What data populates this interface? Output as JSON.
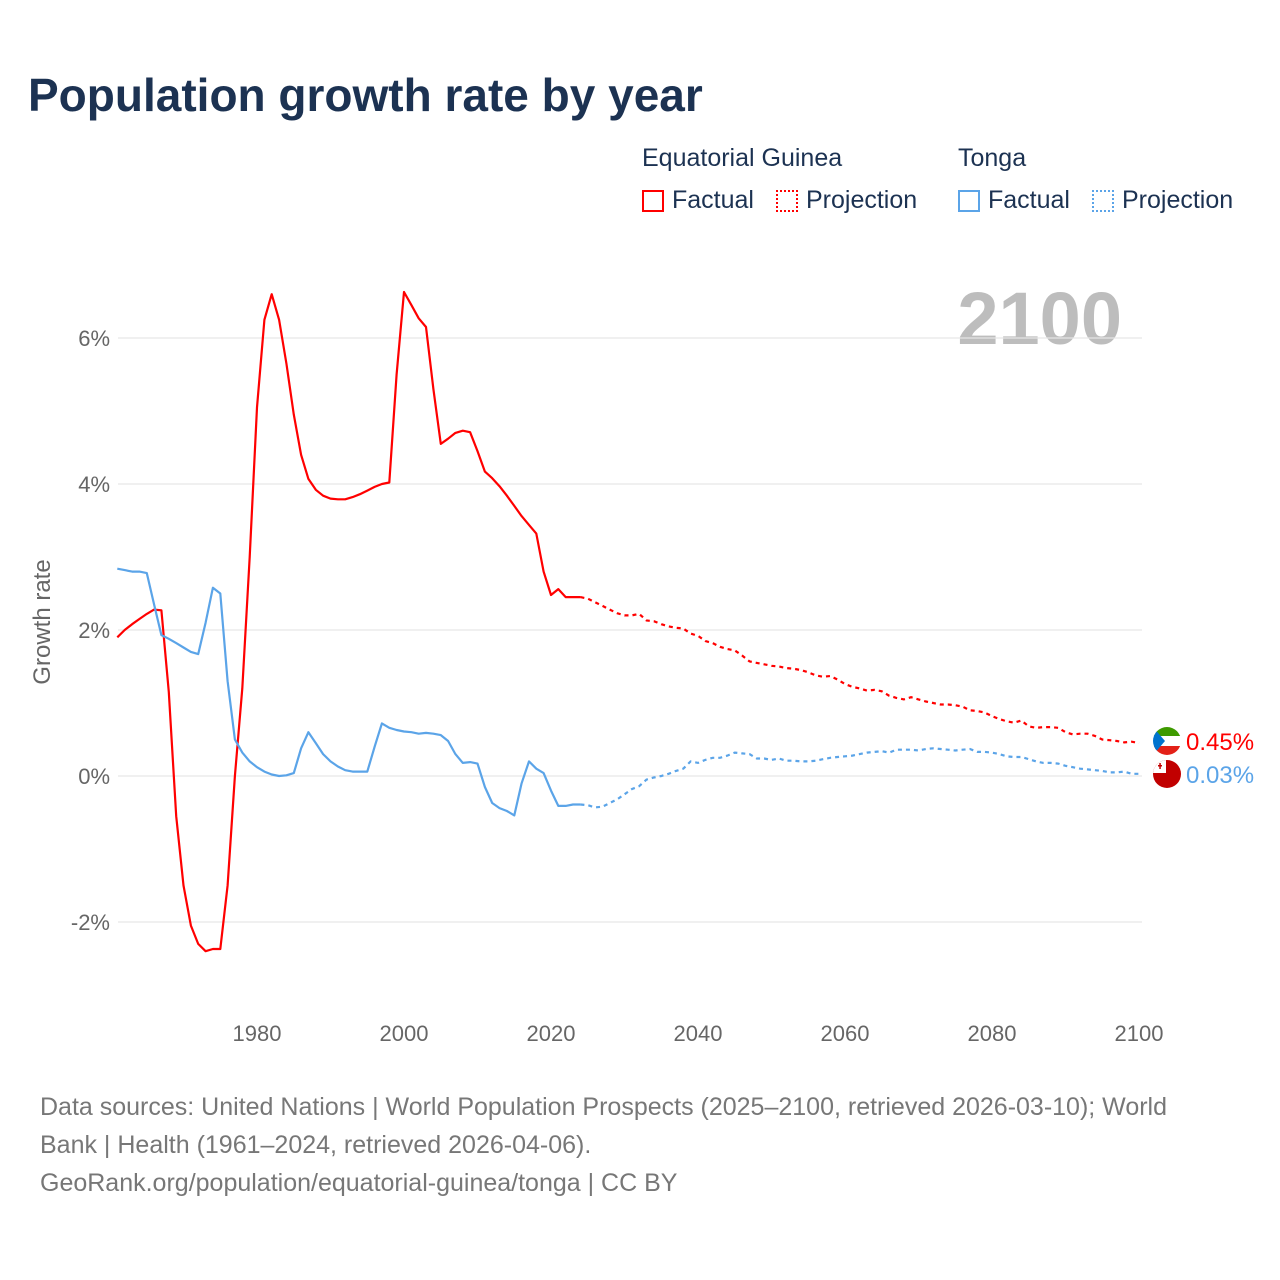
{
  "title": "Population growth rate by year",
  "year_label": "2100",
  "legend": {
    "groups": [
      {
        "name": "Equatorial Guinea",
        "factual": "Factual",
        "projection": "Projection",
        "color": "#ff0000"
      },
      {
        "name": "Tonga",
        "factual": "Factual",
        "projection": "Projection",
        "color": "#5ba4e8"
      }
    ]
  },
  "footer": {
    "line1": "Data sources: United Nations | World Population Prospects (2025–2100, retrieved 2026-03-10); World",
    "line2": "Bank | Health (1961–2024, retrieved 2026-04-06).",
    "line3": "GeoRank.org/population/equatorial-guinea/tonga | CC BY"
  },
  "chart_data": {
    "type": "line",
    "title": "Population growth rate by year",
    "xlabel": "",
    "ylabel": "Growth rate",
    "xlim": [
      1961,
      2100
    ],
    "ylim": [
      -3,
      7
    ],
    "x_ticks": [
      1980,
      2000,
      2020,
      2040,
      2060,
      2080,
      2100
    ],
    "x_tick_labels": [
      "1980",
      "2000",
      "2020",
      "2040",
      "2060",
      "2080",
      "2100"
    ],
    "y_ticks": [
      -2,
      0,
      2,
      4,
      6
    ],
    "y_tick_labels": [
      "-2%",
      "0%",
      "2%",
      "4%",
      "6%"
    ],
    "grid": true,
    "legend_position": "top-right",
    "series": [
      {
        "name": "Equatorial Guinea",
        "color": "#ff0000",
        "end_label": "0.45%",
        "factual_start": 1961,
        "factual": [
          1.9,
          2.0,
          2.08,
          2.15,
          2.22,
          2.28,
          2.27,
          1.15,
          -0.55,
          -1.5,
          -2.05,
          -2.3,
          -2.4,
          -2.37,
          -2.37,
          -1.5,
          0.0,
          1.2,
          3.0,
          5.05,
          6.25,
          6.6,
          6.25,
          5.65,
          4.95,
          4.4,
          4.07,
          3.92,
          3.84,
          3.8,
          3.79,
          3.79,
          3.82,
          3.86,
          3.91,
          3.96,
          4.0,
          4.02,
          5.5,
          6.63,
          6.45,
          6.27,
          6.15,
          5.3,
          4.55,
          4.62,
          4.7,
          4.73,
          4.71,
          4.45,
          4.17,
          4.08,
          3.97,
          3.84,
          3.7,
          3.56,
          3.44,
          3.32,
          2.8,
          2.48,
          2.56,
          2.45,
          2.45,
          2.45
        ],
        "projection_start": 2024,
        "projection": [
          2.45,
          2.43,
          2.38,
          2.33,
          2.28,
          2.23,
          2.2,
          2.2,
          2.22,
          2.13,
          2.12,
          2.08,
          2.05,
          2.03,
          2.02,
          1.95,
          1.92,
          1.85,
          1.82,
          1.77,
          1.74,
          1.72,
          1.65,
          1.57,
          1.55,
          1.53,
          1.51,
          1.5,
          1.48,
          1.47,
          1.45,
          1.42,
          1.38,
          1.36,
          1.37,
          1.32,
          1.26,
          1.22,
          1.2,
          1.17,
          1.18,
          1.16,
          1.1,
          1.07,
          1.05,
          1.08,
          1.05,
          1.02,
          1.0,
          0.98,
          0.98,
          0.97,
          0.95,
          0.9,
          0.89,
          0.87,
          0.82,
          0.78,
          0.75,
          0.73,
          0.76,
          0.68,
          0.66,
          0.67,
          0.67,
          0.66,
          0.6,
          0.57,
          0.58,
          0.58,
          0.55,
          0.5,
          0.49,
          0.48,
          0.46,
          0.47,
          0.45
        ]
      },
      {
        "name": "Tonga",
        "color": "#5ba4e8",
        "end_label": "0.03%",
        "factual_start": 1961,
        "factual": [
          2.84,
          2.82,
          2.8,
          2.8,
          2.78,
          2.35,
          1.93,
          1.88,
          1.82,
          1.76,
          1.7,
          1.67,
          2.1,
          2.58,
          2.5,
          1.3,
          0.5,
          0.32,
          0.2,
          0.12,
          0.06,
          0.02,
          0.0,
          0.01,
          0.04,
          0.38,
          0.6,
          0.45,
          0.3,
          0.2,
          0.13,
          0.08,
          0.06,
          0.06,
          0.06,
          0.4,
          0.72,
          0.66,
          0.63,
          0.61,
          0.6,
          0.58,
          0.59,
          0.58,
          0.56,
          0.48,
          0.3,
          0.18,
          0.19,
          0.17,
          -0.15,
          -0.37,
          -0.44,
          -0.48,
          -0.54,
          -0.1,
          0.2,
          0.1,
          0.04,
          -0.2,
          -0.41,
          -0.41,
          -0.39,
          -0.39
        ],
        "projection_start": 2024,
        "projection": [
          -0.39,
          -0.4,
          -0.43,
          -0.42,
          -0.37,
          -0.32,
          -0.25,
          -0.18,
          -0.14,
          -0.05,
          -0.02,
          0.0,
          0.03,
          0.07,
          0.1,
          0.2,
          0.18,
          0.22,
          0.25,
          0.25,
          0.28,
          0.32,
          0.31,
          0.3,
          0.24,
          0.24,
          0.22,
          0.24,
          0.21,
          0.21,
          0.2,
          0.2,
          0.21,
          0.23,
          0.25,
          0.26,
          0.27,
          0.28,
          0.3,
          0.32,
          0.33,
          0.34,
          0.32,
          0.36,
          0.36,
          0.36,
          0.35,
          0.37,
          0.38,
          0.37,
          0.36,
          0.35,
          0.36,
          0.37,
          0.33,
          0.33,
          0.32,
          0.3,
          0.27,
          0.26,
          0.26,
          0.23,
          0.2,
          0.18,
          0.18,
          0.17,
          0.14,
          0.12,
          0.1,
          0.09,
          0.08,
          0.07,
          0.05,
          0.05,
          0.06,
          0.03,
          0.03
        ]
      }
    ]
  }
}
